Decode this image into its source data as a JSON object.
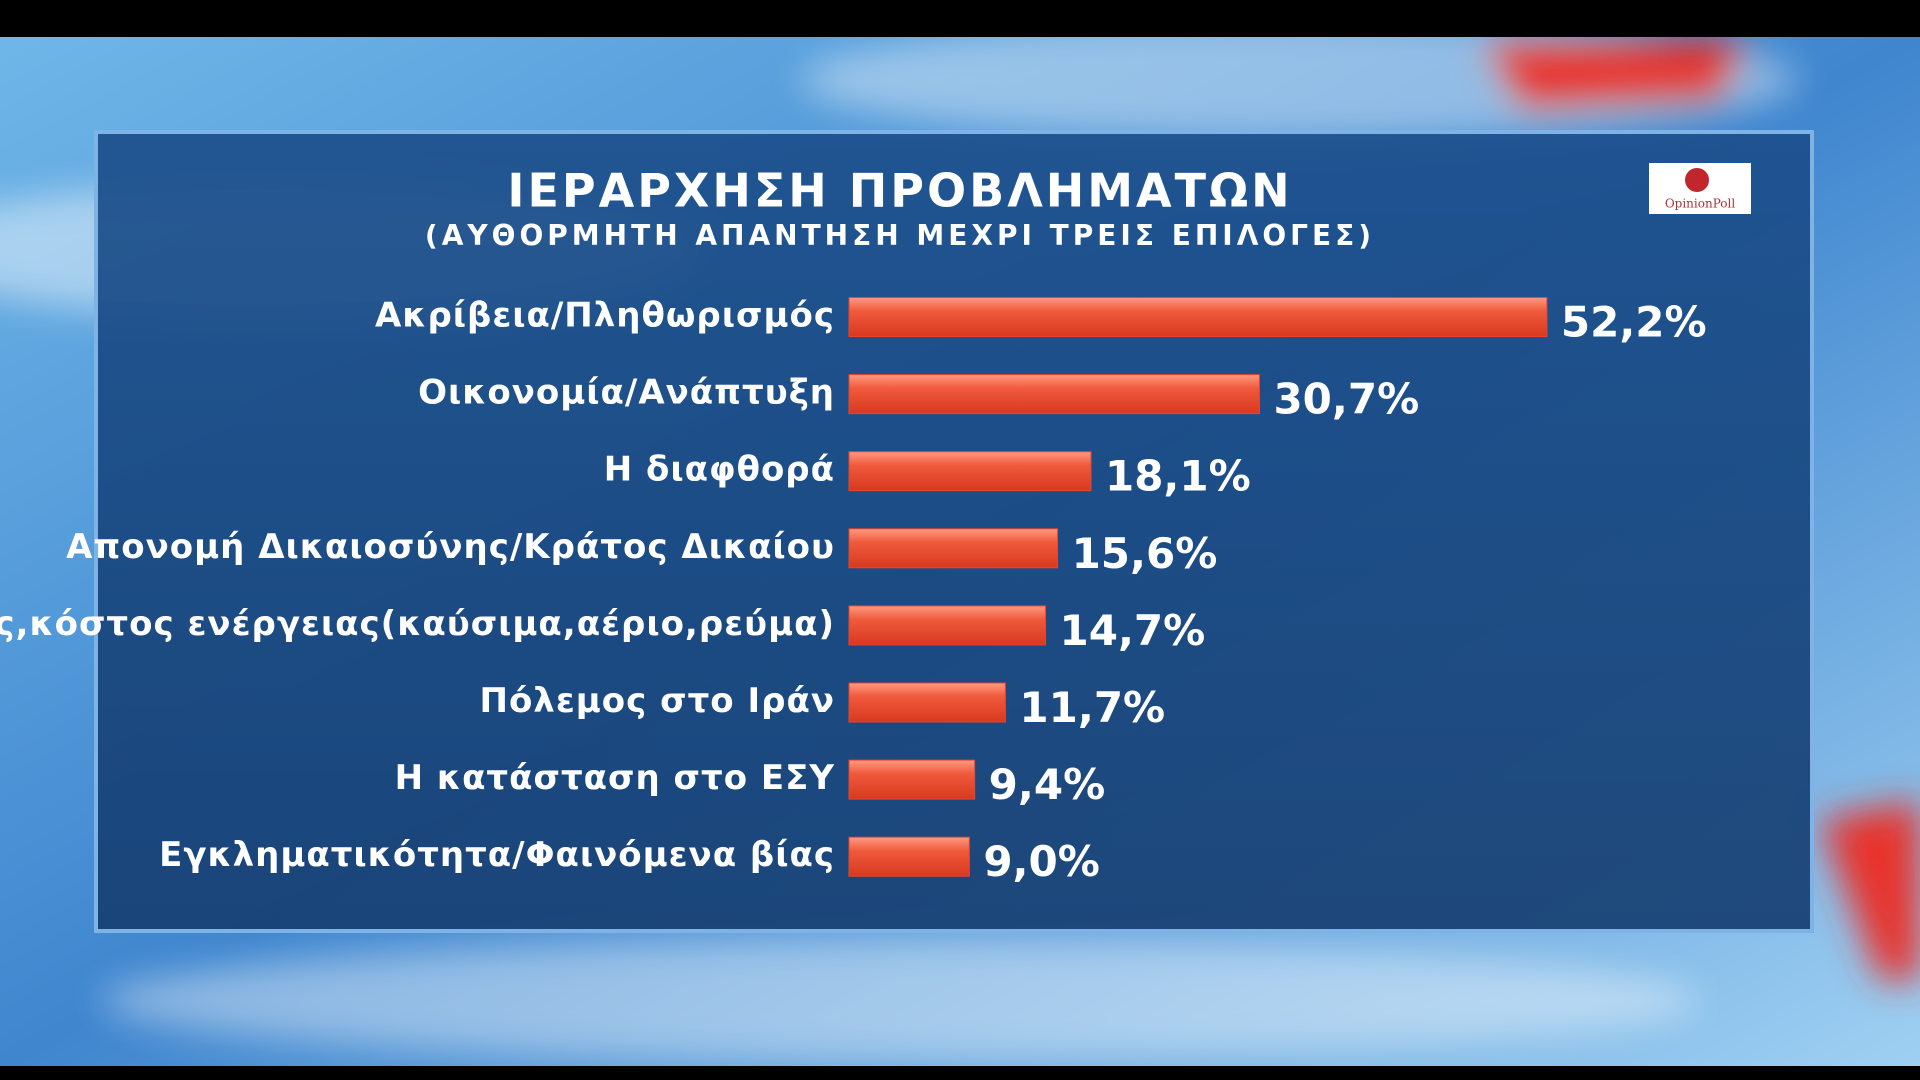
{
  "chart_data": {
    "type": "bar",
    "orientation": "horizontal",
    "title": "ΙΕΡΑΡΧΗΣΗ ΠΡΟΒΛΗΜΑΤΩΝ",
    "subtitle": "(ΑΥΘΟΡΜΗΤΗ ΑΠΑΝΤΗΣΗ ΜΕΧΡΙ ΤΡΕΙΣ ΕΠΙΛΟΓΕΣ)",
    "logo": "OpinionPoll",
    "categories": [
      "Ακρίβεια/Πληθωρισμός",
      "Οικονομία/Ανάπτυξη",
      "Η διαφθορά",
      "Απονομή Δικαιοσύνης/Κράτος Δικαίου",
      "Τιμές,κόστος ενέργειας(καύσιμα,αέριο,ρεύμα)",
      "Πόλεμος στο Ιράν",
      "Η κατάσταση στο ΕΣΥ",
      "Εγκληματικότητα/Φαινόμενα βίας"
    ],
    "values": [
      52.2,
      30.7,
      18.1,
      15.6,
      14.7,
      11.7,
      9.4,
      9.0
    ],
    "value_labels": [
      "52,2%",
      "30,7%",
      "18,1%",
      "15,6%",
      "14,7%",
      "11,7%",
      "9,4%",
      "9,0%"
    ],
    "color": "#e8452c"
  }
}
